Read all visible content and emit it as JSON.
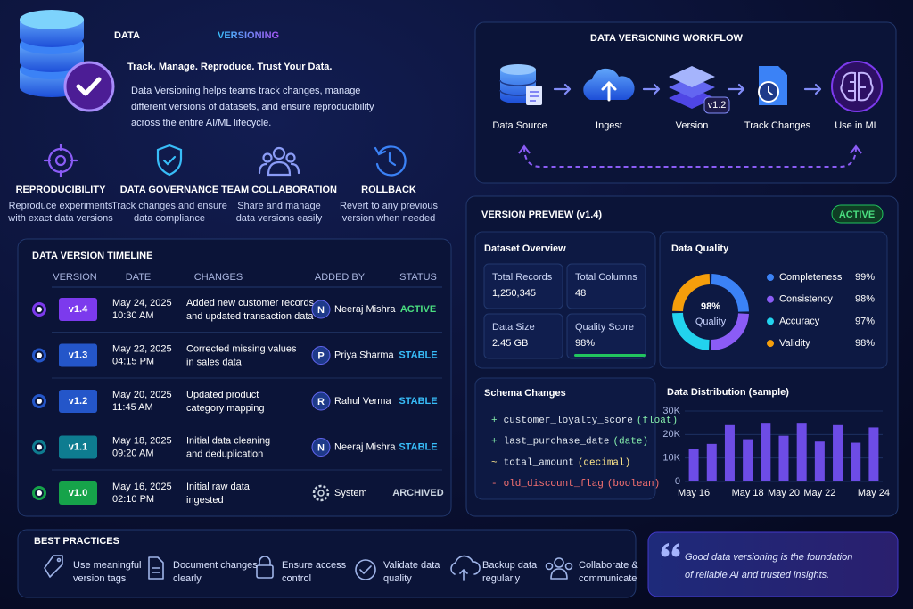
{
  "header": {
    "title_part1": "DATA",
    "title_part2": "VERSIONING",
    "tagline": "Track. Manage. Reproduce. Trust Your Data.",
    "description": [
      "Data Versioning helps teams track changes, manage",
      "different versions of datasets, and ensure reproducibility",
      "across the entire AI/ML lifecycle."
    ]
  },
  "features": [
    {
      "title": "REPRODUCIBILITY",
      "description": [
        "Reproduce experiments",
        "with exact data versions"
      ]
    },
    {
      "title": "DATA GOVERNANCE",
      "description": [
        "Track changes and ensure",
        "data compliance"
      ]
    },
    {
      "title": "TEAM COLLABORATION",
      "description": [
        "Share and manage",
        "data versions easily"
      ]
    },
    {
      "title": "ROLLBACK",
      "description": [
        "Revert to any previous",
        "version when needed"
      ]
    }
  ],
  "timeline": {
    "title": "DATA VERSION TIMELINE",
    "columns": [
      "VERSION",
      "DATE",
      "CHANGES",
      "ADDED BY",
      "STATUS"
    ],
    "rows": [
      {
        "version": "v1.4",
        "date": "May 24, 2025",
        "time": "10:30 AM",
        "changes": [
          "Added new customer records",
          "and updated transaction data"
        ],
        "added_by": "Neeraj Mishra",
        "initial": "N",
        "status": "ACTIVE",
        "color": "#7c3aed"
      },
      {
        "version": "v1.3",
        "date": "May 22, 2025",
        "time": "04:15 PM",
        "changes": [
          "Corrected missing values",
          "in sales data"
        ],
        "added_by": "Priya Sharma",
        "initial": "P",
        "status": "STABLE",
        "color": "#2456c9"
      },
      {
        "version": "v1.2",
        "date": "May 20, 2025",
        "time": "11:45 AM",
        "changes": [
          "Updated product",
          "category mapping"
        ],
        "added_by": "Rahul Verma",
        "initial": "R",
        "status": "STABLE",
        "color": "#2456c9"
      },
      {
        "version": "v1.1",
        "date": "May 18, 2025",
        "time": "09:20 AM",
        "changes": [
          "Initial data cleaning",
          "and deduplication"
        ],
        "added_by": "Neeraj Mishra",
        "initial": "N",
        "status": "STABLE",
        "color": "#0e7c90"
      },
      {
        "version": "v1.0",
        "date": "May 16, 2025",
        "time": "02:10 PM",
        "changes": [
          "Initial raw data",
          "ingested"
        ],
        "added_by": "System",
        "status": "ARCHIVED",
        "color": "#16a34a"
      }
    ]
  },
  "workflow": {
    "title": "DATA VERSIONING WORKFLOW",
    "steps": [
      "Data Source",
      "Ingest",
      "Version",
      "Track Changes",
      "Use in ML"
    ],
    "version_badge": "v1.2"
  },
  "preview": {
    "title": "VERSION PREVIEW (v1.4)",
    "badge": "ACTIVE",
    "overview_title": "Dataset Overview",
    "cards": [
      {
        "label": "Total Records",
        "value": "1,250,345"
      },
      {
        "label": "Total Columns",
        "value": "48"
      },
      {
        "label": "Data Size",
        "value": "2.45 GB"
      },
      {
        "label": "Quality Score",
        "value": "98%"
      }
    ]
  },
  "quality": {
    "title": "Data Quality",
    "score": "98%",
    "score_caption": "Quality",
    "metrics": [
      {
        "name": "Completeness",
        "value": 99,
        "value_label": "99%",
        "color": "#3b82f6"
      },
      {
        "name": "Consistency",
        "value": 98,
        "value_label": "98%",
        "color": "#8b5cf6"
      },
      {
        "name": "Accuracy",
        "value": 97,
        "value_label": "97%",
        "color": "#22d3ee"
      },
      {
        "name": "Validity",
        "value": 98,
        "value_label": "98%",
        "color": "#f59e0b"
      }
    ]
  },
  "schema": {
    "title": "Schema Changes",
    "changes": [
      {
        "symbol": "+",
        "field": "customer_loyalty_score",
        "type": "(float)",
        "color": "#86efac"
      },
      {
        "symbol": "+",
        "field": "last_purchase_date",
        "type": "(date)",
        "color": "#86efac"
      },
      {
        "symbol": "~",
        "field": "total_amount",
        "type": "(decimal)",
        "color": "#fde68a"
      },
      {
        "symbol": "-",
        "field": "old_discount_flag",
        "type": "(boolean)",
        "color": "#f87171"
      }
    ]
  },
  "distribution": {
    "type": "bar",
    "title": "Data Distribution (sample)",
    "categories": [
      "May 16",
      null,
      null,
      "May 18",
      null,
      "May 20",
      null,
      "May 22",
      null,
      null,
      "May 24"
    ],
    "values": [
      14000,
      16000,
      24000,
      18000,
      25000,
      19500,
      25000,
      17000,
      24000,
      16500,
      23000
    ],
    "ylim": [
      0,
      30000
    ],
    "yticks": [
      0,
      {
        "value": 10000,
        "label": "10K"
      },
      {
        "value": 20000,
        "label": "20K"
      },
      {
        "value": 30000,
        "label": "30K"
      }
    ],
    "color": "#6d4ce6",
    "grid": true
  },
  "best_practices": {
    "title": "BEST PRACTICES",
    "items": [
      [
        "Use meaningful",
        "version tags"
      ],
      [
        "Document changes",
        "clearly"
      ],
      [
        "Ensure access",
        "control"
      ],
      [
        "Validate data",
        "quality"
      ],
      [
        "Backup data",
        "regularly"
      ],
      [
        "Collaborate &",
        "communicate"
      ]
    ]
  },
  "quote": [
    "Good data versioning is the foundation",
    "of reliable AI and trusted insights."
  ]
}
